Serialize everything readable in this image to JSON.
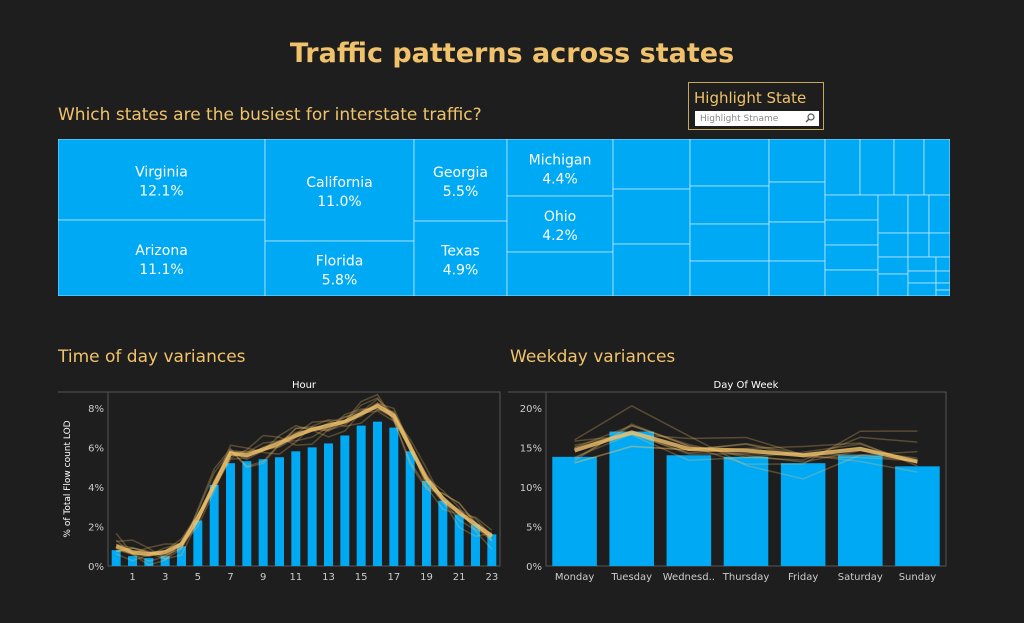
{
  "title": "Traffic patterns across states",
  "treemap_section": {
    "title": "Which states are the busiest for interstate traffic?"
  },
  "highlight": {
    "label": "Highlight State",
    "placeholder": "Highlight Stname"
  },
  "colors": {
    "background": "#1e1e1e",
    "accent": "#f0c26b",
    "bar": "#00a9f4",
    "line": "#f0c26b"
  },
  "chart_data": [
    {
      "type": "treemap",
      "title": "Which states are the busiest for interstate traffic?",
      "items": [
        {
          "label": "Virginia",
          "value": 12.1,
          "value_label": "12.1%"
        },
        {
          "label": "Arizona",
          "value": 11.1,
          "value_label": "11.1%"
        },
        {
          "label": "California",
          "value": 11.0,
          "value_label": "11.0%"
        },
        {
          "label": "Florida",
          "value": 5.8,
          "value_label": "5.8%"
        },
        {
          "label": "Georgia",
          "value": 5.5,
          "value_label": "5.5%"
        },
        {
          "label": "Texas",
          "value": 4.9,
          "value_label": "4.9%"
        },
        {
          "label": "Michigan",
          "value": 4.4,
          "value_label": "4.4%"
        },
        {
          "label": "Ohio",
          "value": 4.2,
          "value_label": "4.2%"
        }
      ]
    },
    {
      "type": "bar",
      "title": "Time of day variances",
      "header": "Hour",
      "ylabel": "% of Total Flow count LOD",
      "ylim": [
        0,
        8.8
      ],
      "yticks": [
        0,
        2,
        4,
        6,
        8
      ],
      "ytick_labels": [
        "0%",
        "2%",
        "4%",
        "6%",
        "8%"
      ],
      "categories": [
        0,
        1,
        2,
        3,
        4,
        5,
        6,
        7,
        8,
        9,
        10,
        11,
        12,
        13,
        14,
        15,
        16,
        17,
        18,
        19,
        20,
        21,
        22,
        23
      ],
      "xtick_labels": [
        "1",
        "3",
        "5",
        "7",
        "9",
        "11",
        "13",
        "15",
        "17",
        "19",
        "21",
        "23"
      ],
      "values": [
        0.8,
        0.5,
        0.4,
        0.5,
        1.0,
        2.3,
        4.1,
        5.2,
        5.3,
        5.4,
        5.5,
        5.8,
        6.0,
        6.2,
        6.6,
        7.1,
        7.3,
        7.0,
        5.8,
        4.3,
        3.3,
        2.6,
        2.1,
        1.6
      ],
      "line_mean": [
        1.0,
        0.7,
        0.6,
        0.7,
        1.1,
        2.4,
        4.1,
        5.7,
        5.6,
        5.9,
        6.2,
        6.6,
        6.9,
        7.1,
        7.3,
        7.7,
        8.1,
        7.6,
        6.0,
        4.4,
        3.4,
        2.7,
        2.1,
        1.5
      ]
    },
    {
      "type": "bar",
      "title": "Weekday variances",
      "header": "Day Of Week",
      "ylim": [
        0,
        22
      ],
      "yticks": [
        0,
        5,
        10,
        15,
        20
      ],
      "ytick_labels": [
        "0%",
        "5%",
        "10%",
        "15%",
        "20%"
      ],
      "categories": [
        "Monday",
        "Tuesday",
        "Wednesd..",
        "Thursday",
        "Friday",
        "Saturday",
        "Sunday"
      ],
      "values": [
        13.8,
        17.0,
        14.0,
        13.8,
        13.0,
        14.0,
        12.6
      ],
      "line_mean": [
        14.6,
        16.9,
        14.8,
        14.6,
        14.0,
        14.8,
        13.2
      ]
    }
  ]
}
